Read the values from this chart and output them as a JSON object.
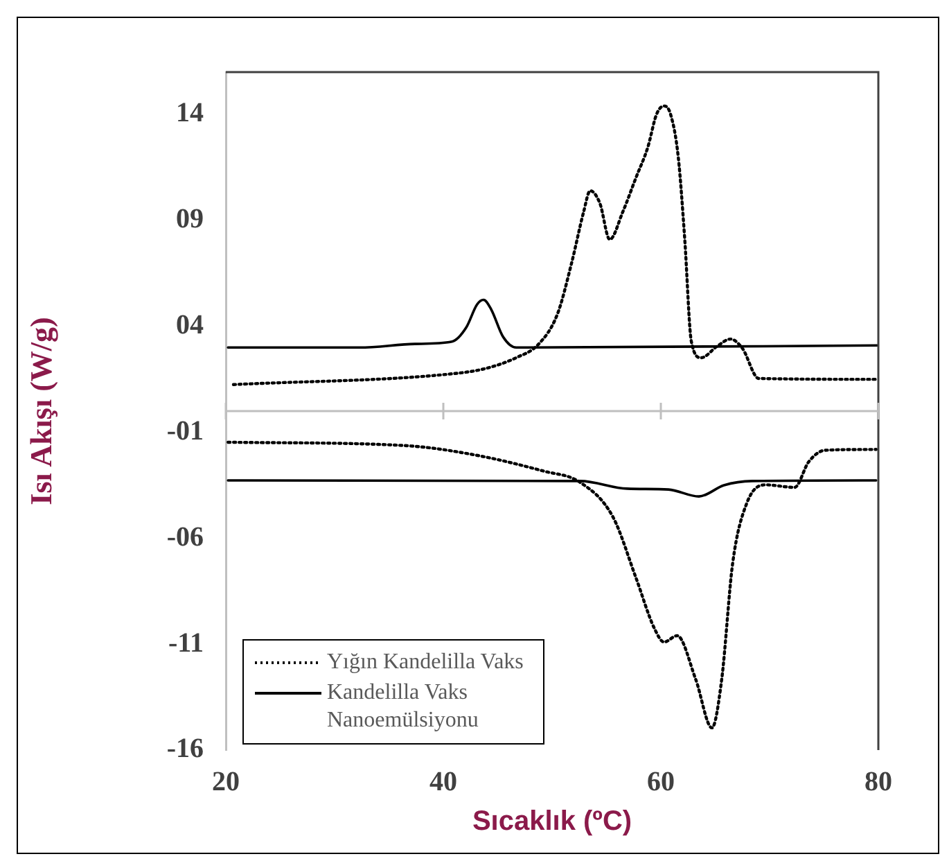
{
  "chart_data": {
    "type": "line",
    "xlabel": "Sıcaklık (ºC)",
    "ylabel": "Isı Akışı (W/g)",
    "xlim": [
      20,
      80
    ],
    "xticks": [
      20,
      40,
      60,
      80
    ],
    "ylim": [
      -16,
      16
    ],
    "yticks": [
      {
        "value": -16,
        "label": "-16"
      },
      {
        "value": -11,
        "label": "-11"
      },
      {
        "value": -6,
        "label": "-06"
      },
      {
        "value": -1,
        "label": "-01"
      },
      {
        "value": 4,
        "label": "04"
      },
      {
        "value": 9,
        "label": "09"
      },
      {
        "value": 14,
        "label": "14"
      }
    ],
    "grid": false,
    "legend": "bottom left",
    "marker": "none",
    "ref_lines": [
      {
        "axis": "y",
        "value": 0,
        "color": "#bfbfbf"
      }
    ],
    "series": [
      {
        "name": "Yığın Kandelilla Vaks",
        "color": "#000000",
        "line_style": "dotted",
        "x": [
          20.7,
          40.8,
          43.8,
          46.7,
          48.8,
          50.5,
          51.8,
          52.9,
          53.5,
          54.4,
          55.3,
          56.5,
          57.7,
          58.8,
          59.6,
          60.3,
          60.9,
          61.6,
          62.2,
          62.8,
          63.7,
          65.2,
          66.4,
          67.5,
          69.0,
          79.9
        ],
        "values": [
          1.25,
          1.76,
          2.0,
          2.52,
          3.18,
          4.59,
          7.0,
          9.4,
          10.4,
          9.8,
          8.1,
          9.4,
          11.0,
          12.45,
          14.0,
          14.4,
          14.0,
          12.0,
          8.1,
          3.3,
          2.52,
          3.07,
          3.4,
          2.96,
          1.54,
          1.5
        ]
      },
      {
        "name": "Kandelilla Vaks Nanoemülsiyonu",
        "color": "#000000",
        "line_style": "solid",
        "x": [
          20.2,
          32.3,
          37.4,
          40.8,
          42.1,
          43.1,
          43.7,
          44.4,
          45.5,
          46.7,
          79.9
        ],
        "values": [
          3.0,
          3.0,
          3.17,
          3.28,
          3.94,
          5.03,
          5.25,
          4.8,
          3.5,
          3.0,
          3.1
        ]
      },
      {
        "color": "#000000",
        "line_style": "dotted",
        "x": [
          20.2,
          36.5,
          42.8,
          49.2,
          52.6,
          55.6,
          57.7,
          59.4,
          60.3,
          61.5,
          63.2,
          64.7,
          65.6,
          66.6,
          67.9,
          69.6,
          72.3,
          73.6,
          75.1,
          79.8
        ],
        "values": [
          -1.47,
          -1.63,
          -2.06,
          -2.83,
          -3.37,
          -5.0,
          -7.85,
          -10.25,
          -10.9,
          -10.6,
          -12.65,
          -14.95,
          -12.65,
          -7.2,
          -4.35,
          -3.48,
          -3.6,
          -2.39,
          -1.85,
          -1.81
        ]
      },
      {
        "color": "#000000",
        "line_style": "solid",
        "x": [
          20.2,
          52.6,
          56.9,
          60.7,
          63.5,
          65.8,
          68.4,
          79.8
        ],
        "values": [
          -3.27,
          -3.3,
          -3.66,
          -3.7,
          -4.03,
          -3.5,
          -3.3,
          -3.27
        ]
      }
    ]
  }
}
